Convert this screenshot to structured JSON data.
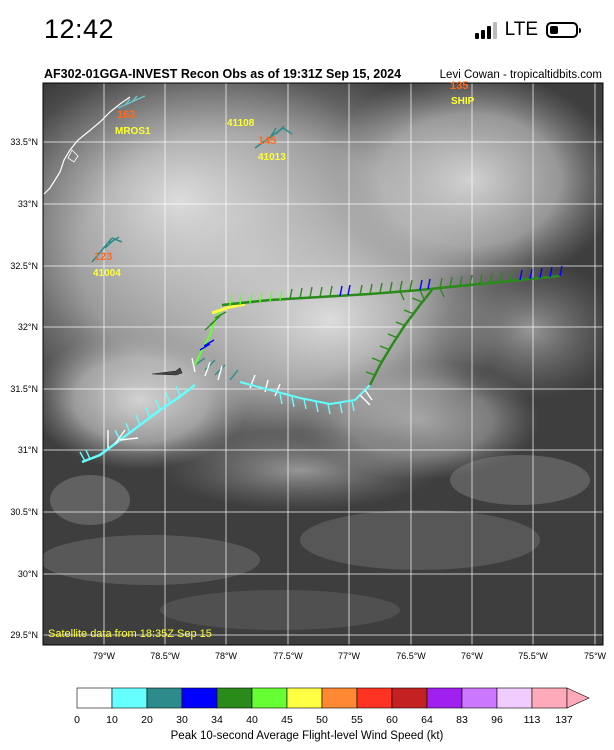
{
  "status_bar": {
    "time": "12:42",
    "network": "LTE"
  },
  "map": {
    "title": "AF302-01GGA-INVEST Recon Obs as of 19:31Z Sep 15, 2024",
    "credit": "Levi Cowan - tropicaltidbits.com",
    "satellite_note": "Satellite data from 18:35Z Sep 15",
    "lat_labels": [
      "33.5°N",
      "33°N",
      "32.5°N",
      "32°N",
      "31.5°N",
      "31°N",
      "30.5°N",
      "30°N",
      "29.5°N"
    ],
    "lon_labels": [
      "79°W",
      "78.5°W",
      "78°W",
      "77.5°W",
      "77°W",
      "76.5°W",
      "76°W",
      "75.5°W",
      "75°W"
    ],
    "stations": [
      {
        "id": "MROS1",
        "value": "163"
      },
      {
        "id": "41108",
        "value": ""
      },
      {
        "id": "41013",
        "value": "145"
      },
      {
        "id": "SHIP",
        "value": "135"
      },
      {
        "id": "41004",
        "value": "123"
      }
    ]
  },
  "colorbar": {
    "ticks": [
      "0",
      "10",
      "20",
      "30",
      "34",
      "40",
      "45",
      "50",
      "55",
      "60",
      "64",
      "83",
      "96",
      "113",
      "137"
    ],
    "colors": [
      "#ffffff",
      "#66ffff",
      "#2e8b8b",
      "#0000ff",
      "#2a8a1a",
      "#66ff33",
      "#ffff44",
      "#ff8833",
      "#ff3322",
      "#c42222",
      "#a020f0",
      "#cc77ff",
      "#f0ccff",
      "#ffaabb"
    ],
    "label": "Peak 10-second Average Flight-level Wind Speed (kt)"
  },
  "track_segments": [
    {
      "color": "cyan",
      "speed_range": "10-20"
    },
    {
      "color": "white",
      "speed_range": "0-10"
    },
    {
      "color": "green",
      "speed_range": "34-45"
    },
    {
      "color": "blue",
      "speed_range": "30-34"
    },
    {
      "color": "yellow",
      "speed_range": "45-50"
    }
  ]
}
